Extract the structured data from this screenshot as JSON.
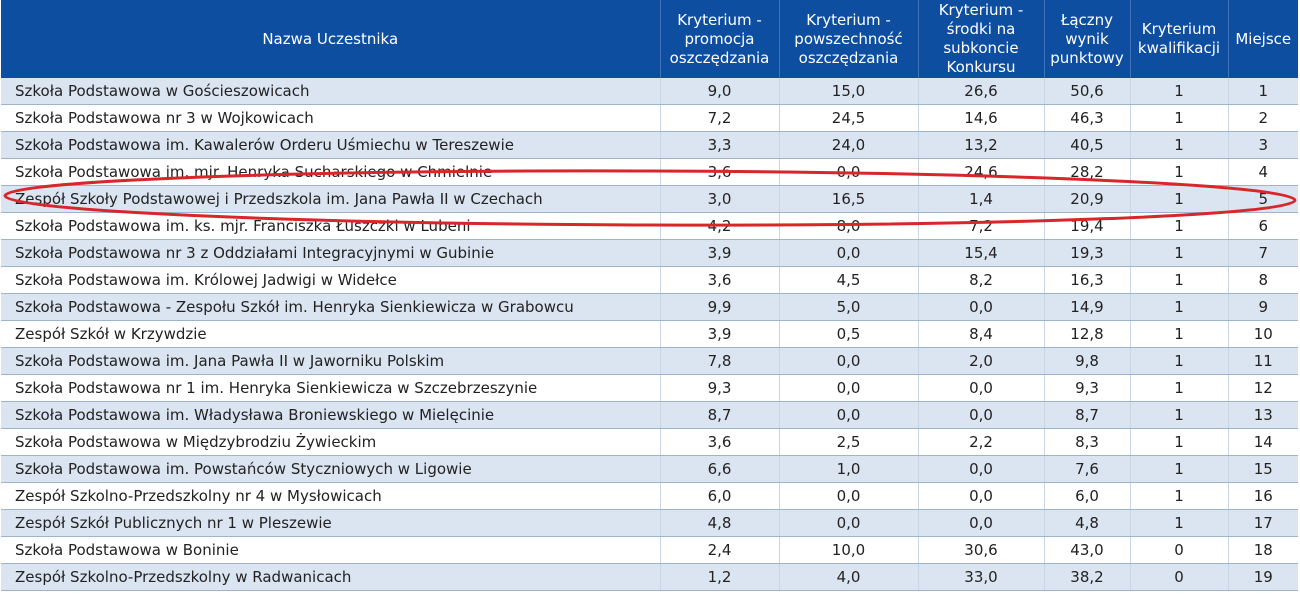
{
  "headers": [
    "Nazwa Uczestnika",
    "Kryterium -\npromocja\noszczędzania",
    "Kryterium -\npowszechność\noszczędzania",
    "Kryterium -\nśrodki na\nsubkoncie\nKonkursu",
    "Łączny\nwynik\npunktowy",
    "Kryterium\nkwalifikacji",
    "Miejsce"
  ],
  "rows": [
    [
      "Szkoła Podstawowa w Gościeszowicach",
      "9,0",
      "15,0",
      "26,6",
      "50,6",
      "1",
      "1"
    ],
    [
      "Szkoła Podstawowa nr 3 w Wojkowicach",
      "7,2",
      "24,5",
      "14,6",
      "46,3",
      "1",
      "2"
    ],
    [
      "Szkoła Podstawowa im. Kawalerów Orderu Uśmiechu w Tereszewie",
      "3,3",
      "24,0",
      "13,2",
      "40,5",
      "1",
      "3"
    ],
    [
      "Szkoła Podstawowa im. mjr. Henryka Sucharskiego w Chmielnie",
      "3,6",
      "0,0",
      "24,6",
      "28,2",
      "1",
      "4"
    ],
    [
      "Zespół Szkoły Podstawowej i Przedszkola im. Jana Pawła II w Czechach",
      "3,0",
      "16,5",
      "1,4",
      "20,9",
      "1",
      "5"
    ],
    [
      "Szkoła Podstawowa im. ks. mjr. Franciszka Łuszczki w Lubeni",
      "4,2",
      "8,0",
      "7,2",
      "19,4",
      "1",
      "6"
    ],
    [
      "Szkoła Podstawowa nr 3 z Oddziałami Integracyjnymi w Gubinie",
      "3,9",
      "0,0",
      "15,4",
      "19,3",
      "1",
      "7"
    ],
    [
      "Szkoła Podstawowa im. Królowej Jadwigi w Widełce",
      "3,6",
      "4,5",
      "8,2",
      "16,3",
      "1",
      "8"
    ],
    [
      "Szkoła Podstawowa - Zespołu Szkół im. Henryka Sienkiewicza w Grabowcu",
      "9,9",
      "5,0",
      "0,0",
      "14,9",
      "1",
      "9"
    ],
    [
      "Zespół Szkół w Krzywdzie",
      "3,9",
      "0,5",
      "8,4",
      "12,8",
      "1",
      "10"
    ],
    [
      "Szkoła Podstawowa im. Jana Pawła II w Jaworniku Polskim",
      "7,8",
      "0,0",
      "2,0",
      "9,8",
      "1",
      "11"
    ],
    [
      "Szkoła Podstawowa nr 1 im. Henryka Sienkiewicza w Szczebrzeszynie",
      "9,3",
      "0,0",
      "0,0",
      "9,3",
      "1",
      "12"
    ],
    [
      "Szkoła Podstawowa im. Władysława Broniewskiego w Mielęcinie",
      "8,7",
      "0,0",
      "0,0",
      "8,7",
      "1",
      "13"
    ],
    [
      "Szkoła Podstawowa w Międzybrodziu Żywieckim",
      "3,6",
      "2,5",
      "2,2",
      "8,3",
      "1",
      "14"
    ],
    [
      "Szkoła Podstawowa im. Powstańców Styczniowych w Ligowie",
      "6,6",
      "1,0",
      "0,0",
      "7,6",
      "1",
      "15"
    ],
    [
      "Zespół Szkolno-Przedszkolny nr 4 w Mysłowicach",
      "6,0",
      "0,0",
      "0,0",
      "6,0",
      "1",
      "16"
    ],
    [
      "Zespół Szkół Publicznych nr 1 w Pleszewie",
      "4,8",
      "0,0",
      "0,0",
      "4,8",
      "1",
      "17"
    ],
    [
      "Szkoła Podstawowa w Boninie",
      "2,4",
      "10,0",
      "30,6",
      "43,0",
      "0",
      "18"
    ],
    [
      "Zespół Szkolno-Przedszkolny w Radwanicach",
      "1,2",
      "4,0",
      "33,0",
      "38,2",
      "0",
      "19"
    ]
  ],
  "colors": {
    "header_bg": "#0d4ea1",
    "row_alt_bg": "#dbe5f1",
    "highlight_ellipse": "#d8262b"
  }
}
